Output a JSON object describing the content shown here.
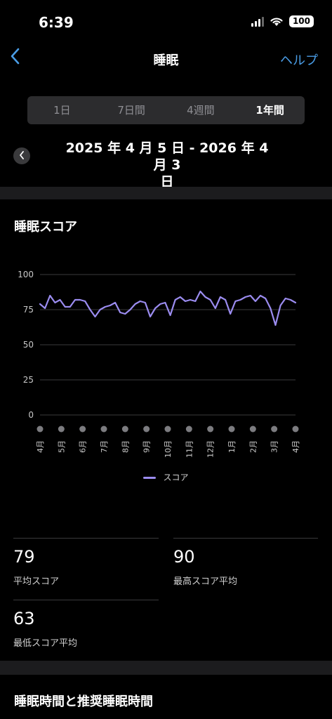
{
  "status_bar": {
    "time": "6:39",
    "battery": "100"
  },
  "nav": {
    "title": "睡眠",
    "help": "ヘルプ"
  },
  "tabs": [
    {
      "label": "1日",
      "active": false
    },
    {
      "label": "7日間",
      "active": false
    },
    {
      "label": "4週間",
      "active": false
    },
    {
      "label": "1年間",
      "active": true
    }
  ],
  "date_range": {
    "line1": "2025 年 4 月 5 日 - 2026 年 4 月 3",
    "line2": "日"
  },
  "sleep_score": {
    "title": "睡眠スコア",
    "legend": "スコア"
  },
  "chart_data": {
    "type": "line",
    "title": "睡眠スコア",
    "xlabel": "",
    "ylabel": "",
    "ylim": [
      0,
      100
    ],
    "yticks": [
      0,
      25,
      50,
      75,
      100
    ],
    "xticks": [
      "4月",
      "5月",
      "6月",
      "7月",
      "8月",
      "9月",
      "10月",
      "11月",
      "12月",
      "1月",
      "2月",
      "3月",
      "4月"
    ],
    "grid": true,
    "legend_position": "bottom-center",
    "series": [
      {
        "name": "スコア",
        "color": "#9b8cf0",
        "values": [
          79,
          76,
          85,
          80,
          82,
          77,
          77,
          82,
          82,
          81,
          75,
          70,
          75,
          77,
          78,
          80,
          73,
          72,
          75,
          79,
          81,
          80,
          70,
          76,
          79,
          80,
          71,
          82,
          84,
          81,
          82,
          81,
          88,
          84,
          82,
          76,
          84,
          82,
          72,
          81,
          82,
          84,
          85,
          81,
          85,
          83,
          76,
          64,
          78,
          83,
          82,
          80
        ]
      }
    ]
  },
  "stats": {
    "average": {
      "value": "79",
      "label": "平均スコア"
    },
    "highest": {
      "value": "90",
      "label": "最高スコア平均"
    },
    "lowest": {
      "value": "63",
      "label": "最低スコア平均"
    }
  },
  "next_section": {
    "title": "睡眠時間と推奨睡眠時間"
  }
}
